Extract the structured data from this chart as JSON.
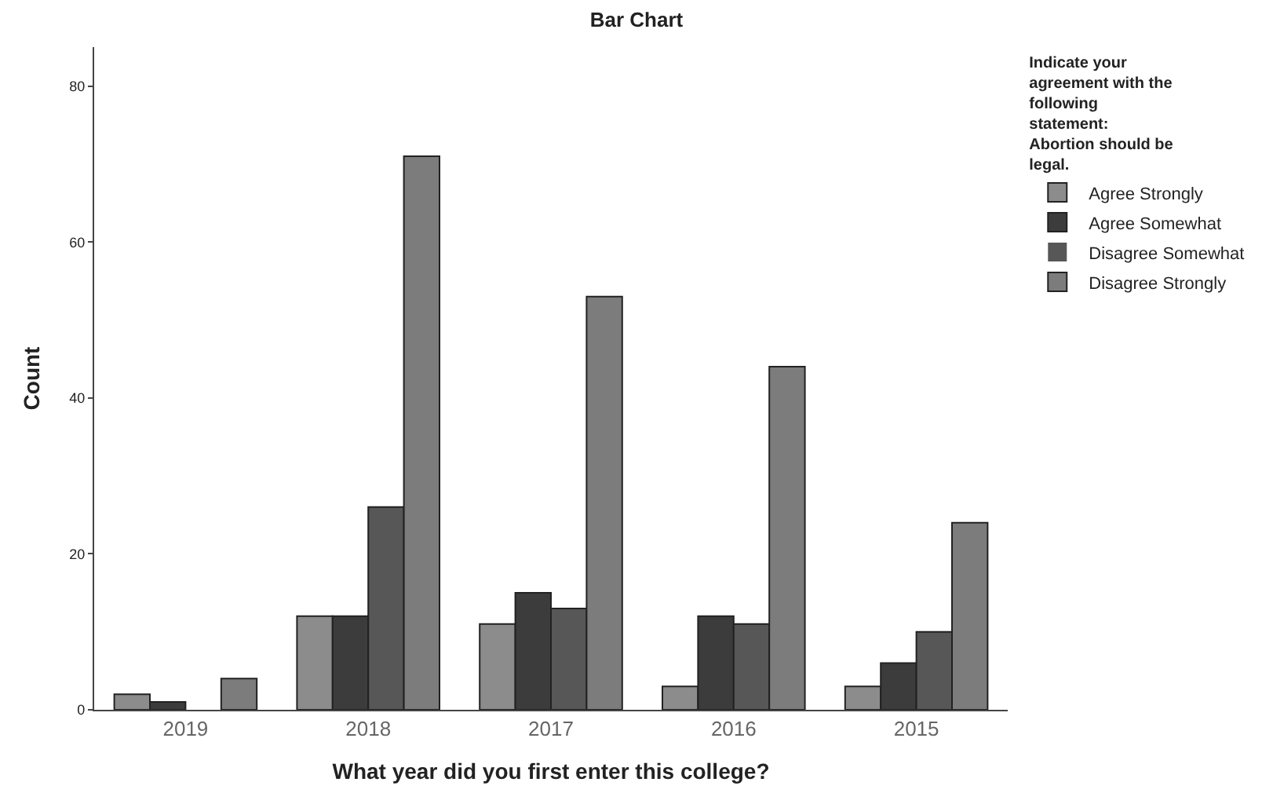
{
  "chart_data": {
    "type": "bar",
    "title": "Bar Chart",
    "xlabel": "What year did you first enter this college?",
    "ylabel": "Count",
    "legend_title": "Indicate your agreement with the following statement:  Abortion should be legal.",
    "categories": [
      "2019",
      "2018",
      "2017",
      "2016",
      "2015"
    ],
    "series": [
      {
        "name": "Agree Strongly",
        "color": "#8c8c8c",
        "values": [
          2,
          12,
          11,
          3,
          3
        ]
      },
      {
        "name": "Agree Somewhat",
        "color": "#3c3c3c",
        "values": [
          1,
          12,
          15,
          12,
          6
        ]
      },
      {
        "name": "Disagree Somewhat",
        "color": "#575757",
        "values": [
          0,
          26,
          13,
          11,
          10
        ]
      },
      {
        "name": "Disagree Strongly",
        "color": "#7c7c7c",
        "values": [
          4,
          71,
          53,
          44,
          24
        ]
      }
    ],
    "ylim": [
      0,
      85
    ],
    "yticks": [
      0,
      20,
      40,
      60,
      80
    ],
    "legend": "top right"
  }
}
